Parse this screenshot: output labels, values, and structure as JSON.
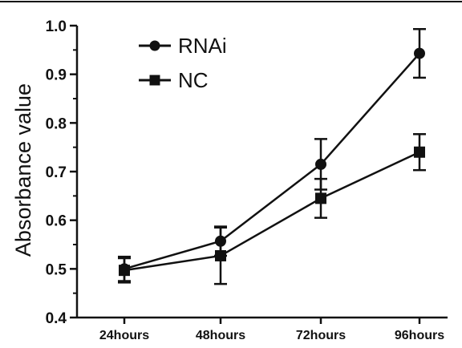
{
  "chart_data": {
    "type": "line",
    "title": "",
    "xlabel": "",
    "ylabel": "Absorbance value",
    "categories": [
      "24hours",
      "48hours",
      "72hours",
      "96hours"
    ],
    "ylim": [
      0.4,
      1.0
    ],
    "yticks": [
      "0.4",
      "0.5",
      "0.6",
      "0.7",
      "0.8",
      "0.9",
      "1.0"
    ],
    "grid": false,
    "legend_position": "top-left",
    "series": [
      {
        "name": "RNAi",
        "marker": "circle",
        "values": [
          0.5,
          0.557,
          0.715,
          0.943
        ],
        "errors": [
          0.025,
          0.03,
          0.052,
          0.05
        ]
      },
      {
        "name": "NC",
        "marker": "square",
        "values": [
          0.497,
          0.527,
          0.645,
          0.74
        ],
        "errors": [
          0.025,
          0.058,
          0.04,
          0.037
        ]
      }
    ]
  }
}
